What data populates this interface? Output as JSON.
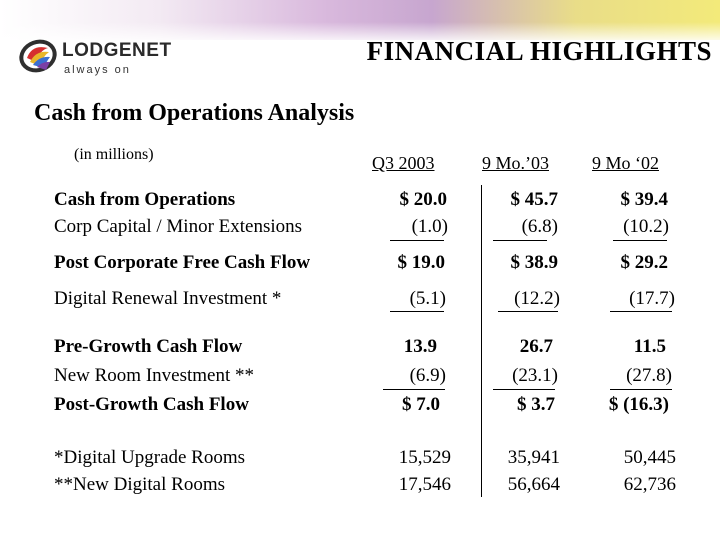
{
  "header": {
    "logo_name": "LODGENET",
    "logo_tagline": "always on",
    "title": "FINANCIAL HIGHLIGHTS"
  },
  "section": {
    "subtitle": "Cash from Operations Analysis",
    "units_note": "(in millions)"
  },
  "columns": [
    "Q3 2003",
    "9 Mo.’03",
    "9 Mo ‘02"
  ],
  "rows": [
    {
      "label": "Cash from Operations",
      "bold": true,
      "values": [
        "$  20.0",
        "$  45.7",
        "$  39.4"
      ]
    },
    {
      "label": "Corp Capital / Minor Extensions",
      "bold": false,
      "values": [
        "(1.0)",
        "(6.8)",
        "(10.2)"
      ]
    },
    {
      "label": "Post Corporate Free Cash Flow",
      "bold": true,
      "values": [
        "$ 19.0",
        "$  38.9",
        "$   29.2"
      ]
    },
    {
      "label": "Digital Renewal Investment *",
      "bold": false,
      "values": [
        "(5.1)",
        "(12.2)",
        "(17.7)"
      ]
    },
    {
      "label": "Pre-Growth Cash Flow",
      "bold": true,
      "values": [
        "13.9",
        "26.7",
        "11.5"
      ]
    },
    {
      "label": "New Room Investment **",
      "bold": false,
      "values": [
        "(6.9)",
        "(23.1)",
        "(27.8)"
      ]
    },
    {
      "label": "Post-Growth Cash Flow",
      "bold": true,
      "values": [
        "$  7.0",
        "$    3.7",
        "$ (16.3)"
      ]
    },
    {
      "label": "*Digital Upgrade Rooms",
      "bold": false,
      "values": [
        "15,529",
        "35,941",
        "50,445"
      ]
    },
    {
      "label": "**New Digital Rooms",
      "bold": false,
      "values": [
        "17,546",
        "56,664",
        "62,736"
      ]
    }
  ],
  "colors": {
    "text": "#000000",
    "band_start": "#ffffff",
    "band_mid": "#c7a6cf",
    "band_end": "#f3ea7a"
  }
}
